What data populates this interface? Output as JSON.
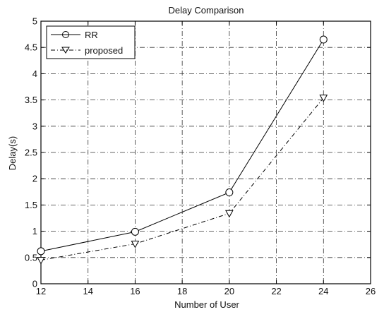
{
  "chart_data": {
    "type": "line",
    "title": "Delay Comparison",
    "xlabel": "Number of User",
    "ylabel": "Delay(s)",
    "xlim": [
      12,
      26
    ],
    "ylim": [
      0,
      5
    ],
    "xticks": [
      12,
      14,
      16,
      18,
      20,
      22,
      24,
      26
    ],
    "yticks": [
      0,
      0.5,
      1,
      1.5,
      2,
      2.5,
      3,
      3.5,
      4,
      4.5,
      5
    ],
    "xtick_labels": [
      "12",
      "14",
      "16",
      "18",
      "20",
      "22",
      "24",
      "26"
    ],
    "ytick_labels": [
      "0",
      "0.5",
      "1",
      "1.5",
      "2",
      "2.5",
      "3",
      "3.5",
      "4",
      "4.5",
      "5"
    ],
    "grid": true,
    "legend_position": "top-left",
    "series": [
      {
        "name": "RR",
        "marker": "circle",
        "line_style": "solid",
        "color": "#000000",
        "x": [
          12,
          16,
          20,
          24
        ],
        "y": [
          0.62,
          0.99,
          1.74,
          4.65
        ]
      },
      {
        "name": "proposed",
        "marker": "triangle-down",
        "line_style": "dash-dot",
        "color": "#000000",
        "x": [
          12,
          16,
          20,
          24
        ],
        "y": [
          0.45,
          0.76,
          1.34,
          3.54
        ]
      }
    ]
  }
}
